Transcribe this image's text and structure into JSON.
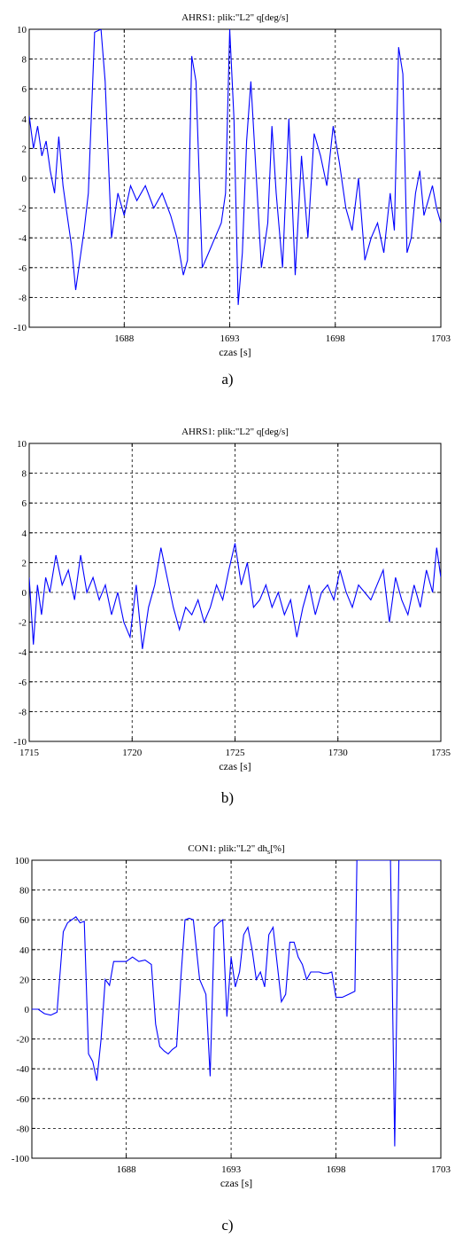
{
  "chart_data": [
    {
      "id": "a",
      "type": "line",
      "title": "AHRS1: plik:\"L2\"    q[deg/s]",
      "xlabel": "czas [s]",
      "ylabel": "",
      "caption": "a)",
      "xlim": [
        1683.5,
        1703
      ],
      "ylim": [
        -10,
        10
      ],
      "xticks": [
        1688,
        1693,
        1698,
        1703
      ],
      "xtick_labels": [
        "1688",
        "1693",
        "1698",
        "1703"
      ],
      "yticks": [
        -10,
        -8,
        -6,
        -4,
        -2,
        0,
        2,
        4,
        6,
        8,
        10
      ],
      "ytick_labels": [
        "-10",
        "-8",
        "-6",
        "-4",
        "-2",
        "0",
        "2",
        "4",
        "6",
        "8",
        "10"
      ],
      "grid": true,
      "series_color": "#0000ff",
      "x": [
        1683.5,
        1683.7,
        1683.9,
        1684.1,
        1684.3,
        1684.5,
        1684.7,
        1684.9,
        1685.1,
        1685.3,
        1685.5,
        1685.7,
        1685.9,
        1686.1,
        1686.3,
        1686.6,
        1686.9,
        1687.1,
        1687.4,
        1687.7,
        1688.0,
        1688.3,
        1688.6,
        1689.0,
        1689.4,
        1689.8,
        1690.2,
        1690.5,
        1690.8,
        1691.0,
        1691.2,
        1691.4,
        1691.7,
        1692.0,
        1692.3,
        1692.6,
        1692.8,
        1693.0,
        1693.2,
        1693.4,
        1693.6,
        1693.8,
        1694.0,
        1694.2,
        1694.5,
        1694.8,
        1695.0,
        1695.2,
        1695.5,
        1695.8,
        1696.1,
        1696.4,
        1696.7,
        1697.0,
        1697.3,
        1697.6,
        1697.9,
        1698.2,
        1698.5,
        1698.8,
        1699.1,
        1699.4,
        1699.7,
        1700.0,
        1700.3,
        1700.6,
        1700.8,
        1701.0,
        1701.2,
        1701.4,
        1701.6,
        1701.8,
        1702.0,
        1702.2,
        1702.4,
        1702.6,
        1702.8,
        1703.0
      ],
      "y": [
        4.2,
        2.0,
        3.5,
        1.5,
        2.5,
        0.5,
        -1.0,
        2.8,
        -0.5,
        -2.5,
        -4.5,
        -7.5,
        -5.5,
        -3.5,
        -1.0,
        9.8,
        10.0,
        6.5,
        -4.0,
        -1.0,
        -2.5,
        -0.5,
        -1.5,
        -0.5,
        -2.0,
        -1.0,
        -2.5,
        -4.0,
        -6.5,
        -5.5,
        8.2,
        6.5,
        -6.0,
        -5.0,
        -4.0,
        -3.0,
        -1.0,
        10.0,
        4.0,
        -8.5,
        -5.0,
        2.5,
        6.5,
        1.5,
        -6.0,
        -3.0,
        3.5,
        -1.0,
        -6.0,
        4.0,
        -6.5,
        1.5,
        -4.0,
        3.0,
        1.5,
        -0.5,
        3.5,
        1.0,
        -2.0,
        -3.5,
        0.0,
        -5.5,
        -4.0,
        -3.0,
        -5.0,
        -1.0,
        -3.5,
        8.8,
        7.0,
        -5.0,
        -4.0,
        -1.0,
        0.5,
        -2.5,
        -1.5,
        -0.5,
        -2.0,
        -3.0
      ]
    },
    {
      "id": "b",
      "type": "line",
      "title": "AHRS1: plik:\"L2\"    q[deg/s]",
      "xlabel": "czas [s]",
      "ylabel": "",
      "caption": "b)",
      "xlim": [
        1715,
        1735
      ],
      "ylim": [
        -10,
        10
      ],
      "xticks": [
        1715,
        1720,
        1725,
        1730,
        1735
      ],
      "xtick_labels": [
        "1715",
        "1720",
        "1725",
        "1730",
        "1735"
      ],
      "yticks": [
        -10,
        -8,
        -6,
        -4,
        -2,
        0,
        2,
        4,
        6,
        8,
        10
      ],
      "ytick_labels": [
        "-10",
        "-8",
        "-6",
        "-4",
        "-2",
        "0",
        "2",
        "4",
        "6",
        "8",
        "10"
      ],
      "grid": true,
      "series_color": "#0000ff",
      "x": [
        1715.0,
        1715.2,
        1715.4,
        1715.6,
        1715.8,
        1716.0,
        1716.3,
        1716.6,
        1716.9,
        1717.2,
        1717.5,
        1717.8,
        1718.1,
        1718.4,
        1718.7,
        1719.0,
        1719.3,
        1719.6,
        1719.9,
        1720.2,
        1720.5,
        1720.8,
        1721.1,
        1721.4,
        1721.7,
        1722.0,
        1722.3,
        1722.6,
        1722.9,
        1723.2,
        1723.5,
        1723.8,
        1724.1,
        1724.4,
        1724.7,
        1725.0,
        1725.3,
        1725.6,
        1725.9,
        1726.2,
        1726.5,
        1726.8,
        1727.1,
        1727.4,
        1727.7,
        1728.0,
        1728.3,
        1728.6,
        1728.9,
        1729.2,
        1729.5,
        1729.8,
        1730.1,
        1730.4,
        1730.7,
        1731.0,
        1731.3,
        1731.6,
        1731.9,
        1732.2,
        1732.5,
        1732.8,
        1733.1,
        1733.4,
        1733.7,
        1734.0,
        1734.3,
        1734.6,
        1734.8,
        1735.0
      ],
      "y": [
        1.0,
        -3.5,
        0.5,
        -1.5,
        1.0,
        0.0,
        2.5,
        0.5,
        1.5,
        -0.5,
        2.5,
        0.0,
        1.0,
        -0.5,
        0.5,
        -1.5,
        0.0,
        -2.0,
        -3.0,
        0.5,
        -3.8,
        -1.0,
        0.5,
        3.0,
        1.0,
        -1.0,
        -2.5,
        -1.0,
        -1.5,
        -0.5,
        -2.0,
        -1.0,
        0.5,
        -0.5,
        1.5,
        3.3,
        0.5,
        2.0,
        -1.0,
        -0.5,
        0.5,
        -1.0,
        0.0,
        -1.5,
        -0.5,
        -3.0,
        -1.0,
        0.5,
        -1.5,
        0.0,
        0.5,
        -0.5,
        1.5,
        0.0,
        -1.0,
        0.5,
        0.0,
        -0.5,
        0.5,
        1.5,
        -2.0,
        1.0,
        -0.5,
        -1.5,
        0.5,
        -1.0,
        1.5,
        0.0,
        3.0,
        1.0
      ]
    },
    {
      "id": "c",
      "type": "line",
      "title": "CON1: plik:\"L2\"    dh",
      "title_sub": "s",
      "title_suffix": "[%]",
      "xlabel": "czas [s]",
      "ylabel": "",
      "caption": "c)",
      "xlim": [
        1683.5,
        1703
      ],
      "ylim": [
        -100,
        100
      ],
      "xticks": [
        1688,
        1693,
        1698,
        1703
      ],
      "xtick_labels": [
        "1688",
        "1693",
        "1698",
        "1703"
      ],
      "yticks": [
        -100,
        -80,
        -60,
        -40,
        -20,
        0,
        20,
        40,
        60,
        80,
        100
      ],
      "ytick_labels": [
        "-100",
        "-80",
        "-60",
        "-40",
        "-20",
        "0",
        "20",
        "40",
        "60",
        "80",
        "100"
      ],
      "grid": true,
      "series_color": "#0000ff",
      "x": [
        1683.5,
        1683.8,
        1684.1,
        1684.4,
        1684.7,
        1685.0,
        1685.2,
        1685.4,
        1685.6,
        1685.8,
        1686.0,
        1686.2,
        1686.4,
        1686.6,
        1686.8,
        1687.0,
        1687.2,
        1687.4,
        1687.6,
        1687.8,
        1688.0,
        1688.3,
        1688.6,
        1688.9,
        1689.2,
        1689.4,
        1689.6,
        1689.8,
        1690.0,
        1690.2,
        1690.4,
        1690.6,
        1690.8,
        1691.0,
        1691.2,
        1691.5,
        1691.8,
        1692.0,
        1692.2,
        1692.4,
        1692.6,
        1692.8,
        1693.0,
        1693.2,
        1693.4,
        1693.6,
        1693.8,
        1694.0,
        1694.2,
        1694.4,
        1694.6,
        1694.8,
        1695.0,
        1695.2,
        1695.4,
        1695.6,
        1695.8,
        1696.0,
        1696.2,
        1696.4,
        1696.6,
        1696.8,
        1697.0,
        1697.2,
        1697.4,
        1697.6,
        1697.8,
        1698.0,
        1698.3,
        1698.6,
        1698.9,
        1699.0,
        1699.2,
        1699.4,
        1699.6,
        1699.8,
        1700.0,
        1700.2,
        1700.4,
        1700.6,
        1700.8,
        1701.0,
        1701.2,
        1701.4,
        1701.6,
        1702.0,
        1702.5,
        1703.0
      ],
      "y": [
        0,
        0,
        -3,
        -4,
        -2,
        52,
        58,
        60,
        62,
        58,
        59,
        -30,
        -35,
        -48,
        -20,
        20,
        16,
        32,
        32,
        32,
        32,
        35,
        32,
        33,
        30,
        -10,
        -25,
        -28,
        -30,
        -27,
        -25,
        20,
        60,
        61,
        60,
        20,
        10,
        -45,
        55,
        58,
        60,
        -5,
        35,
        15,
        25,
        50,
        55,
        40,
        20,
        25,
        15,
        50,
        55,
        30,
        5,
        10,
        45,
        45,
        35,
        30,
        20,
        25,
        25,
        25,
        24,
        24,
        25,
        8,
        8,
        10,
        12,
        100,
        100,
        100,
        100,
        100,
        100,
        100,
        100,
        100,
        -92,
        100,
        100,
        100,
        100,
        100,
        100,
        100
      ]
    }
  ]
}
